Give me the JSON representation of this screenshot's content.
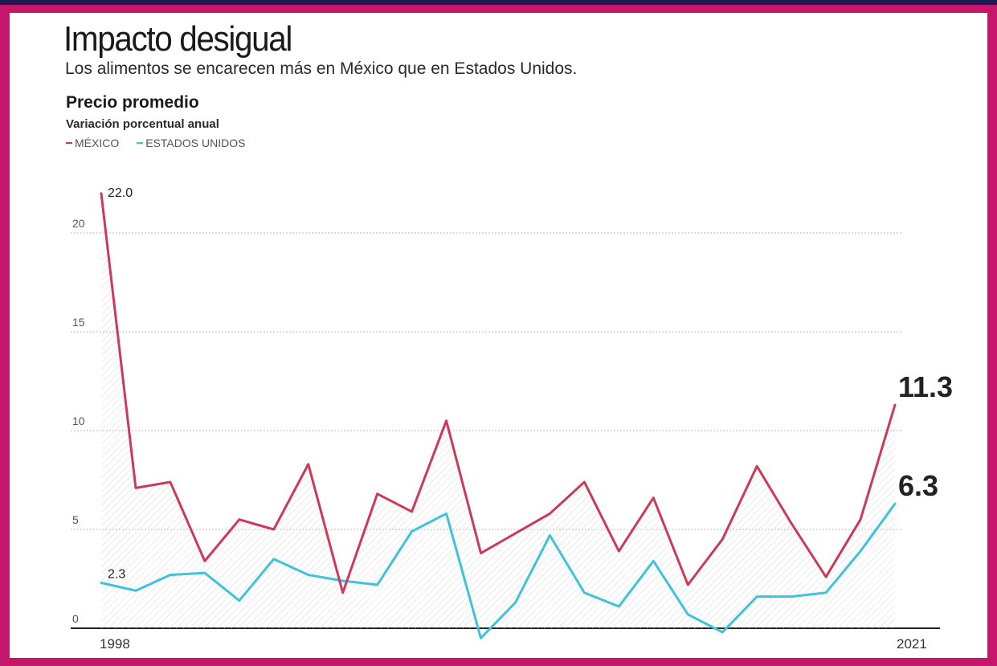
{
  "header": {
    "title": "Impacto desigual",
    "subtitle": "Los alimentos se encarecen más en México que en Estados Unidos."
  },
  "chart_heading": "Precio promedio",
  "chart_subheading": "Variación porcentual anual",
  "legend": [
    {
      "label": "MÉXICO",
      "color": "#cd3a58"
    },
    {
      "label": "ESTADOS UNIDOS",
      "color": "#3fc3dc"
    }
  ],
  "chart_data": {
    "type": "line",
    "x": [
      1998,
      1999,
      2000,
      2001,
      2002,
      2003,
      2004,
      2005,
      2006,
      2007,
      2008,
      2009,
      2010,
      2011,
      2012,
      2013,
      2014,
      2015,
      2016,
      2017,
      2018,
      2019,
      2020,
      2021
    ],
    "series": [
      {
        "name": "MÉXICO",
        "color": "#cd3a58",
        "values": [
          22.0,
          7.1,
          7.4,
          3.4,
          5.5,
          5.0,
          8.3,
          1.8,
          6.8,
          5.9,
          10.5,
          3.8,
          4.8,
          5.8,
          7.4,
          3.9,
          6.6,
          2.2,
          4.5,
          8.2,
          5.3,
          2.6,
          5.5,
          11.3
        ]
      },
      {
        "name": "ESTADOS UNIDOS",
        "color": "#3fc3dc",
        "values": [
          2.3,
          1.9,
          2.7,
          2.8,
          1.4,
          3.5,
          2.7,
          2.4,
          2.2,
          4.9,
          5.8,
          -0.5,
          1.3,
          4.7,
          1.8,
          1.1,
          3.4,
          0.7,
          -0.2,
          1.6,
          1.6,
          1.8,
          3.9,
          6.3
        ]
      }
    ],
    "ylim": [
      0,
      22
    ],
    "yticks": [
      0,
      5,
      10,
      15,
      20
    ],
    "xtick_labels": [
      "1998",
      "2021"
    ],
    "data_labels": [
      {
        "series": 0,
        "index": 0,
        "text": "22.0"
      },
      {
        "series": 1,
        "index": 0,
        "text": "2.3"
      },
      {
        "series": 0,
        "index": 23,
        "text": "11.3"
      },
      {
        "series": 1,
        "index": 23,
        "text": "6.3"
      }
    ],
    "grid": true
  }
}
